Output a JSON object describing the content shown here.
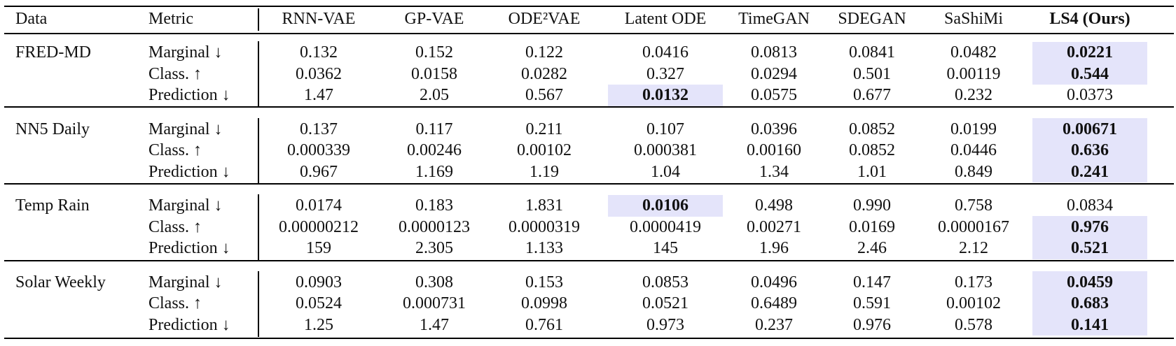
{
  "table": {
    "columns": [
      "Data",
      "Metric",
      "RNN-VAE",
      "GP-VAE",
      "ODE²VAE",
      "Latent ODE",
      "TimeGAN",
      "SDEGAN",
      "SaShiMi",
      "LS4 (Ours)"
    ],
    "groups": [
      {
        "name": "FRED-MD",
        "rows": [
          {
            "metric": "Marginal ↓",
            "values": [
              "0.132",
              "0.152",
              "0.122",
              "0.0416",
              "0.0813",
              "0.0841",
              "0.0482",
              "0.0221"
            ]
          },
          {
            "metric": "Class. ↑",
            "values": [
              "0.0362",
              "0.0158",
              "0.0282",
              "0.327",
              "0.0294",
              "0.501",
              "0.00119",
              "0.544"
            ]
          },
          {
            "metric": "Prediction ↓",
            "values": [
              "1.47",
              "2.05",
              "0.567",
              "0.0132",
              "0.0575",
              "0.677",
              "0.232",
              "0.0373"
            ]
          }
        ]
      },
      {
        "name": "NN5 Daily",
        "rows": [
          {
            "metric": "Marginal ↓",
            "values": [
              "0.137",
              "0.117",
              "0.211",
              "0.107",
              "0.0396",
              "0.0852",
              "0.0199",
              "0.00671"
            ]
          },
          {
            "metric": "Class. ↑",
            "values": [
              "0.000339",
              "0.00246",
              "0.00102",
              "0.000381",
              "0.00160",
              "0.0852",
              "0.0446",
              "0.636"
            ]
          },
          {
            "metric": "Prediction ↓",
            "values": [
              "0.967",
              "1.169",
              "1.19",
              "1.04",
              "1.34",
              "1.01",
              "0.849",
              "0.241"
            ]
          }
        ]
      },
      {
        "name": "Temp Rain",
        "rows": [
          {
            "metric": "Marginal ↓",
            "values": [
              "0.0174",
              "0.183",
              "1.831",
              "0.0106",
              "0.498",
              "0.990",
              "0.758",
              "0.0834"
            ]
          },
          {
            "metric": "Class. ↑",
            "values": [
              "0.00000212",
              "0.0000123",
              "0.0000319",
              "0.0000419",
              "0.00271",
              "0.0169",
              "0.0000167",
              "0.976"
            ]
          },
          {
            "metric": "Prediction ↓",
            "values": [
              "159",
              "2.305",
              "1.133",
              "145",
              "1.96",
              "2.46",
              "2.12",
              "0.521"
            ]
          }
        ]
      },
      {
        "name": "Solar Weekly",
        "rows": [
          {
            "metric": "Marginal ↓",
            "values": [
              "0.0903",
              "0.308",
              "0.153",
              "0.0853",
              "0.0496",
              "0.147",
              "0.173",
              "0.0459"
            ]
          },
          {
            "metric": "Class. ↑",
            "values": [
              "0.0524",
              "0.000731",
              "0.0998",
              "0.0521",
              "0.6489",
              "0.591",
              "0.00102",
              "0.683"
            ]
          },
          {
            "metric": "Prediction ↓",
            "values": [
              "1.25",
              "1.47",
              "0.761",
              "0.973",
              "0.237",
              "0.976",
              "0.578",
              "0.141"
            ]
          }
        ]
      }
    ]
  }
}
